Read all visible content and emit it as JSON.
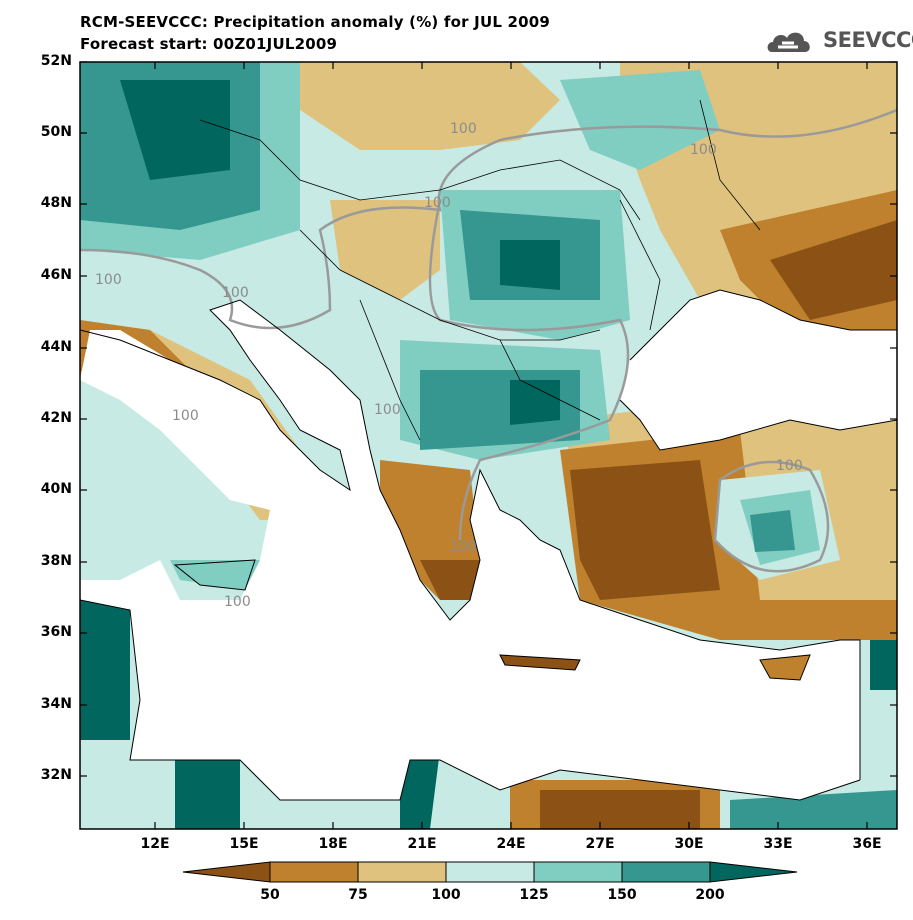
{
  "header": {
    "title": "RCM-SEEVCCC: Precipitation anomaly (%) for JUL 2009",
    "subtitle": "Forecast start: 00Z01JUL2009",
    "logo_text": "SEEVCCC"
  },
  "map": {
    "variable": "Precipitation anomaly (%)",
    "lat_ticks": [
      "52N",
      "50N",
      "48N",
      "46N",
      "44N",
      "42N",
      "40N",
      "38N",
      "36N",
      "34N",
      "32N"
    ],
    "lon_ticks": [
      "12E",
      "15E",
      "18E",
      "21E",
      "24E",
      "27E",
      "30E",
      "33E",
      "36E"
    ],
    "contour_label": "100"
  },
  "colorbar": {
    "levels": [
      "50",
      "75",
      "100",
      "125",
      "150",
      "200"
    ],
    "colors": [
      "#8c5215",
      "#bf812d",
      "#dfc27d",
      "#c7eae5",
      "#80cdc1",
      "#35978f",
      "#01665e"
    ]
  }
}
